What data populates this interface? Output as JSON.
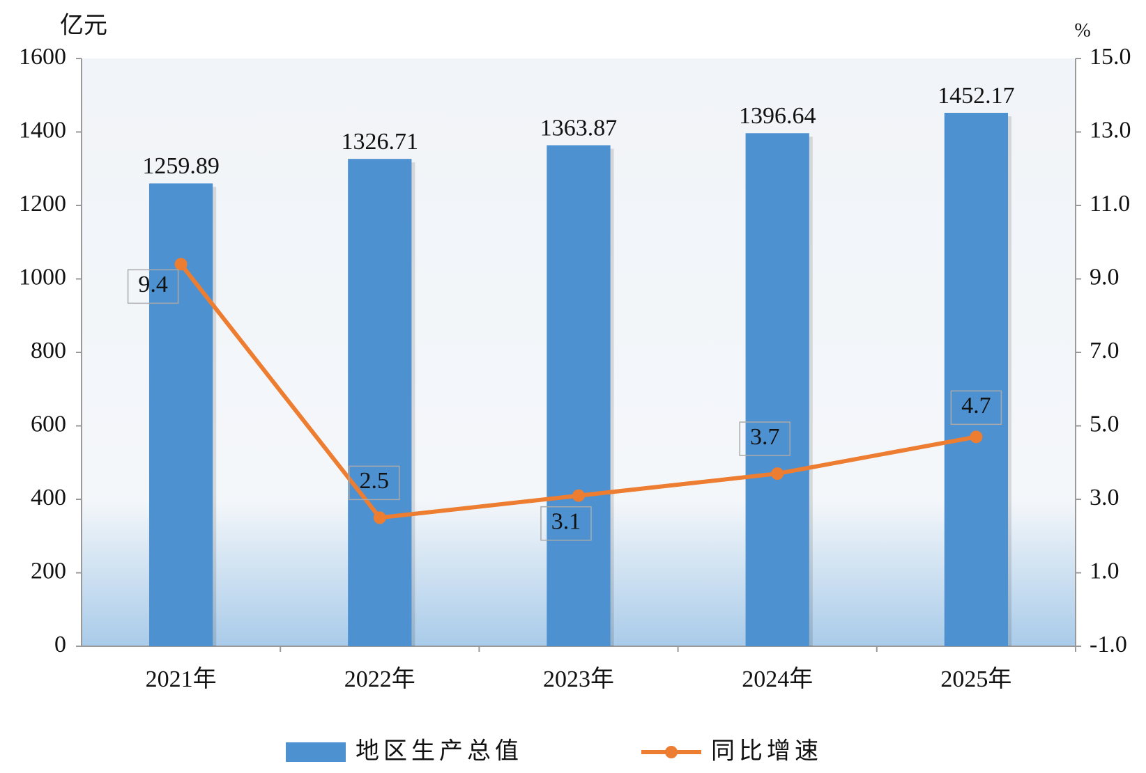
{
  "chart_data": {
    "type": "bar",
    "y_label": "亿元",
    "y2_label": "%",
    "categories": [
      "2021年",
      "2022年",
      "2023年",
      "2024年",
      "2025年"
    ],
    "series": [
      {
        "name": "地区生产总值",
        "type": "bar",
        "color": "#4e91d0",
        "values": [
          1259.89,
          1326.71,
          1363.87,
          1396.64,
          1452.17
        ]
      },
      {
        "name": "同比增速",
        "type": "line",
        "axis": "y2",
        "color": "#ed7d31",
        "values": [
          9.4,
          2.5,
          3.1,
          3.7,
          4.7
        ]
      }
    ],
    "ylim": [
      0,
      1600
    ],
    "yticks": [
      0,
      200,
      400,
      600,
      800,
      1000,
      1200,
      1400,
      1600
    ],
    "y2lim": [
      -1,
      15
    ],
    "y2ticks": [
      {
        "value": -1,
        "label": "-1.0"
      },
      {
        "value": 1,
        "label": "1.0"
      },
      {
        "value": 3,
        "label": "3.0"
      },
      {
        "value": 5,
        "label": "5.0"
      },
      {
        "value": 7,
        "label": "7.0"
      },
      {
        "value": 9,
        "label": "9.0"
      },
      {
        "value": 11,
        "label": "11.0"
      },
      {
        "value": 13,
        "label": "13.0"
      },
      {
        "value": 15,
        "label": "15.0"
      }
    ],
    "legend": "bottom",
    "grid": false
  }
}
